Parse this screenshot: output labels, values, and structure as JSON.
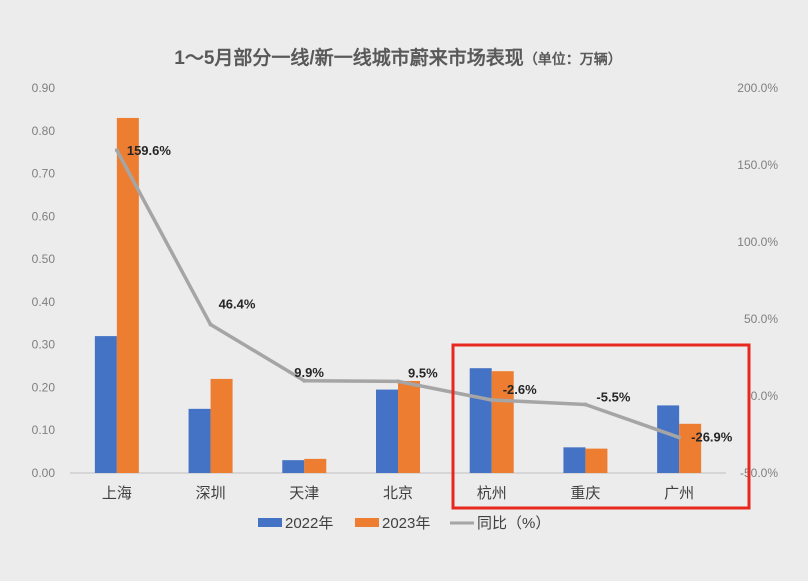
{
  "chart_data": {
    "type": "bar",
    "title": "1～5月部分一线/新一线城市蔚来市场表现",
    "title_unit": "（单位：万辆）",
    "categories": [
      "上海",
      "深圳",
      "天津",
      "北京",
      "杭州",
      "重庆",
      "广州"
    ],
    "series": [
      {
        "name": "2022年",
        "type": "bar",
        "axis": "left",
        "color": "#4472c4",
        "values": [
          0.32,
          0.15,
          0.03,
          0.195,
          0.245,
          0.06,
          0.158
        ]
      },
      {
        "name": "2023年",
        "type": "bar",
        "axis": "left",
        "color": "#ed7d31",
        "values": [
          0.83,
          0.22,
          0.033,
          0.215,
          0.238,
          0.057,
          0.115
        ]
      },
      {
        "name": "同比（%）",
        "type": "line",
        "axis": "right",
        "color": "#a5a5a5",
        "values": [
          159.6,
          46.4,
          9.9,
          9.5,
          -2.6,
          -5.5,
          -26.9
        ]
      }
    ],
    "data_labels": [
      "159.6%",
      "46.4%",
      "9.9%",
      "9.5%",
      "-2.6%",
      "-5.5%",
      "-26.9%"
    ],
    "ylim_left": [
      0,
      0.9
    ],
    "yticks_left": [
      "0.00",
      "0.10",
      "0.20",
      "0.30",
      "0.40",
      "0.50",
      "0.60",
      "0.70",
      "0.80",
      "0.90"
    ],
    "ylim_right": [
      -50,
      200
    ],
    "yticks_right": [
      "-50.0%",
      "0.0%",
      "50.0%",
      "100.0%",
      "150.0%",
      "200.0%"
    ],
    "grid": false,
    "legend_position": "bottom",
    "highlight": {
      "categories": [
        "杭州",
        "重庆",
        "广州"
      ],
      "color": "#e8281e"
    }
  }
}
